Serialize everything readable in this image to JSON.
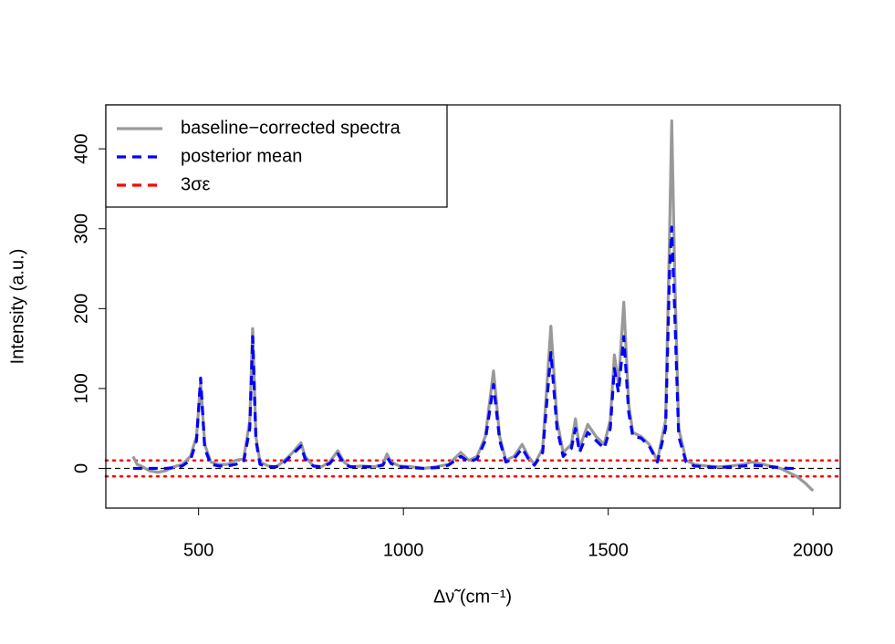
{
  "chart_data": {
    "type": "line",
    "xlabel": "Δν̃ (cm⁻¹)",
    "ylabel": "Intensity (a.u.)",
    "x": [
      340,
      350,
      360,
      380,
      400,
      420,
      440,
      460,
      480,
      495,
      505,
      515,
      530,
      550,
      570,
      590,
      610,
      625,
      632,
      640,
      650,
      670,
      690,
      710,
      730,
      750,
      760,
      780,
      800,
      820,
      840,
      855,
      870,
      900,
      930,
      950,
      960,
      970,
      990,
      1020,
      1050,
      1080,
      1110,
      1140,
      1160,
      1180,
      1200,
      1220,
      1235,
      1250,
      1270,
      1290,
      1305,
      1320,
      1340,
      1360,
      1375,
      1390,
      1410,
      1420,
      1430,
      1450,
      1470,
      1490,
      1505,
      1515,
      1525,
      1538,
      1550,
      1560,
      1580,
      1600,
      1620,
      1640,
      1650,
      1655,
      1662,
      1672,
      1690,
      1710,
      1740,
      1770,
      1800,
      1830,
      1850,
      1880,
      1900,
      1920,
      1940,
      1960,
      1980,
      2000
    ],
    "series": [
      {
        "name": "baseline−corrected spectra",
        "color": "#999999",
        "dash": "none",
        "values": [
          15,
          5,
          3,
          -3,
          -5,
          -3,
          2,
          5,
          15,
          40,
          108,
          30,
          8,
          5,
          5,
          10,
          12,
          60,
          175,
          40,
          8,
          3,
          2,
          10,
          20,
          32,
          15,
          3,
          2,
          8,
          22,
          8,
          2,
          3,
          2,
          5,
          18,
          8,
          3,
          2,
          0,
          2,
          5,
          20,
          10,
          15,
          40,
          122,
          40,
          10,
          15,
          30,
          15,
          5,
          25,
          178,
          60,
          20,
          30,
          62,
          25,
          55,
          40,
          30,
          60,
          142,
          105,
          208,
          80,
          45,
          40,
          30,
          10,
          60,
          300,
          435,
          250,
          50,
          10,
          5,
          3,
          2,
          3,
          5,
          8,
          5,
          2,
          0,
          -5,
          -10,
          -18,
          -28
        ]
      },
      {
        "name": "posterior mean",
        "color": "#0000ff",
        "dash": "10,7",
        "values": [
          0,
          0,
          0,
          0,
          0,
          0,
          1,
          3,
          10,
          35,
          113,
          25,
          5,
          3,
          3,
          5,
          8,
          50,
          165,
          35,
          5,
          2,
          2,
          8,
          18,
          28,
          12,
          3,
          2,
          6,
          18,
          6,
          2,
          2,
          2,
          4,
          14,
          6,
          2,
          1,
          0,
          1,
          4,
          15,
          8,
          12,
          35,
          105,
          35,
          8,
          12,
          25,
          12,
          4,
          20,
          145,
          50,
          15,
          25,
          50,
          20,
          45,
          35,
          25,
          50,
          125,
          95,
          165,
          70,
          40,
          38,
          28,
          8,
          50,
          250,
          302,
          200,
          40,
          8,
          3,
          2,
          1,
          2,
          3,
          4,
          3,
          2,
          1,
          0,
          0,
          null,
          null
        ]
      }
    ],
    "threshold": {
      "name": "3σε",
      "color": "#ff0000",
      "values": [
        -10,
        10
      ]
    },
    "zero_line": 0,
    "xlim": [
      273.6,
      2066.4
    ],
    "ylim": [
      -49.7,
      455
    ],
    "xticks": [
      500,
      1000,
      1500,
      2000
    ],
    "yticks": [
      0,
      100,
      200,
      300,
      400
    ],
    "legend": "top-left"
  }
}
